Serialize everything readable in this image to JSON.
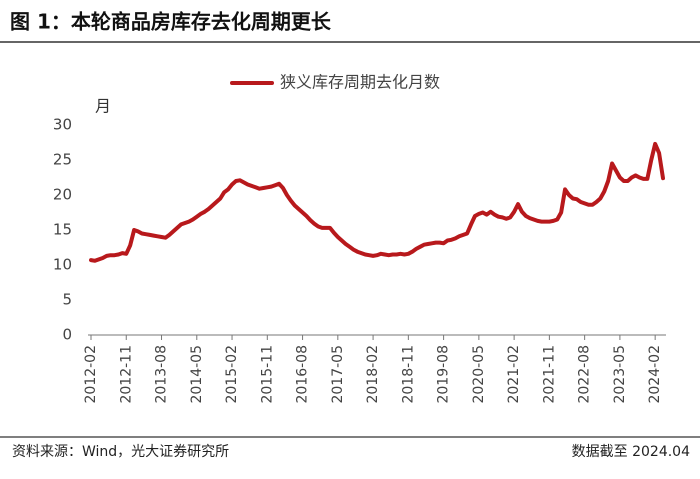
{
  "title": "图 1：本轮商品房库存去化周期更长",
  "chart_data": {
    "type": "line",
    "y_label": "月",
    "categories": [
      "2012-02",
      null,
      null,
      null,
      null,
      null,
      null,
      null,
      null,
      "2012-11",
      null,
      null,
      null,
      null,
      null,
      null,
      null,
      null,
      "2013-08",
      null,
      null,
      null,
      null,
      null,
      null,
      null,
      null,
      "2014-05",
      null,
      null,
      null,
      null,
      null,
      null,
      null,
      null,
      "2015-02",
      null,
      null,
      null,
      null,
      null,
      null,
      null,
      null,
      "2015-11",
      null,
      null,
      null,
      null,
      null,
      null,
      null,
      null,
      "2016-08",
      null,
      null,
      null,
      null,
      null,
      null,
      null,
      null,
      "2017-05",
      null,
      null,
      null,
      null,
      null,
      null,
      null,
      null,
      "2018-02",
      null,
      null,
      null,
      null,
      null,
      null,
      null,
      null,
      "2018-11",
      null,
      null,
      null,
      null,
      null,
      null,
      null,
      null,
      "2019-08",
      null,
      null,
      null,
      null,
      null,
      null,
      null,
      null,
      "2020-05",
      null,
      null,
      null,
      null,
      null,
      null,
      null,
      null,
      "2021-02",
      null,
      null,
      null,
      null,
      null,
      null,
      null,
      null,
      "2021-11",
      null,
      null,
      null,
      null,
      null,
      null,
      null,
      null,
      "2022-08",
      null,
      null,
      null,
      null,
      null,
      null,
      null,
      null,
      "2023-05",
      null,
      null,
      null,
      null,
      null,
      null,
      null,
      null,
      "2024-02",
      null,
      null
    ],
    "series": [
      {
        "name": "狭义库存周期去化月数",
        "color": "#b8191c",
        "values": [
          10.7,
          10.6,
          10.8,
          11.0,
          11.3,
          11.4,
          11.4,
          11.5,
          11.7,
          11.6,
          12.8,
          15.0,
          14.8,
          14.5,
          14.4,
          14.3,
          14.2,
          14.1,
          14.0,
          13.9,
          14.3,
          14.8,
          15.3,
          15.8,
          16.0,
          16.2,
          16.5,
          16.9,
          17.3,
          17.6,
          18.0,
          18.5,
          19.0,
          19.5,
          20.4,
          20.8,
          21.5,
          22.0,
          22.1,
          21.8,
          21.5,
          21.3,
          21.1,
          20.9,
          21.0,
          21.1,
          21.2,
          21.4,
          21.6,
          21.0,
          20.0,
          19.2,
          18.5,
          18.0,
          17.5,
          17.0,
          16.4,
          15.9,
          15.5,
          15.3,
          15.3,
          15.3,
          14.6,
          14.0,
          13.5,
          13.0,
          12.6,
          12.2,
          11.9,
          11.7,
          11.5,
          11.4,
          11.3,
          11.4,
          11.6,
          11.5,
          11.4,
          11.5,
          11.5,
          11.6,
          11.5,
          11.6,
          11.9,
          12.3,
          12.6,
          12.9,
          13.0,
          13.1,
          13.2,
          13.2,
          13.1,
          13.5,
          13.6,
          13.8,
          14.1,
          14.3,
          14.5,
          15.8,
          17.0,
          17.3,
          17.5,
          17.2,
          17.6,
          17.2,
          16.9,
          16.8,
          16.6,
          16.8,
          17.6,
          18.7,
          17.6,
          17.0,
          16.7,
          16.5,
          16.3,
          16.2,
          16.2,
          16.2,
          16.3,
          16.5,
          17.5,
          20.8,
          20.0,
          19.5,
          19.4,
          19.0,
          18.8,
          18.6,
          18.6,
          19.0,
          19.5,
          20.5,
          22.0,
          24.5,
          23.5,
          22.5,
          22.0,
          22.0,
          22.5,
          22.8,
          22.5,
          22.3,
          22.3,
          25.0,
          27.3,
          26.0,
          22.4
        ]
      }
    ],
    "ylim": [
      0,
      30
    ],
    "yticks": [
      0,
      5,
      10,
      15,
      20,
      25,
      30
    ],
    "grid": false
  },
  "footer": {
    "source": "资料来源：Wind，光大证券研究所",
    "note": "数据截至 2024.04"
  }
}
